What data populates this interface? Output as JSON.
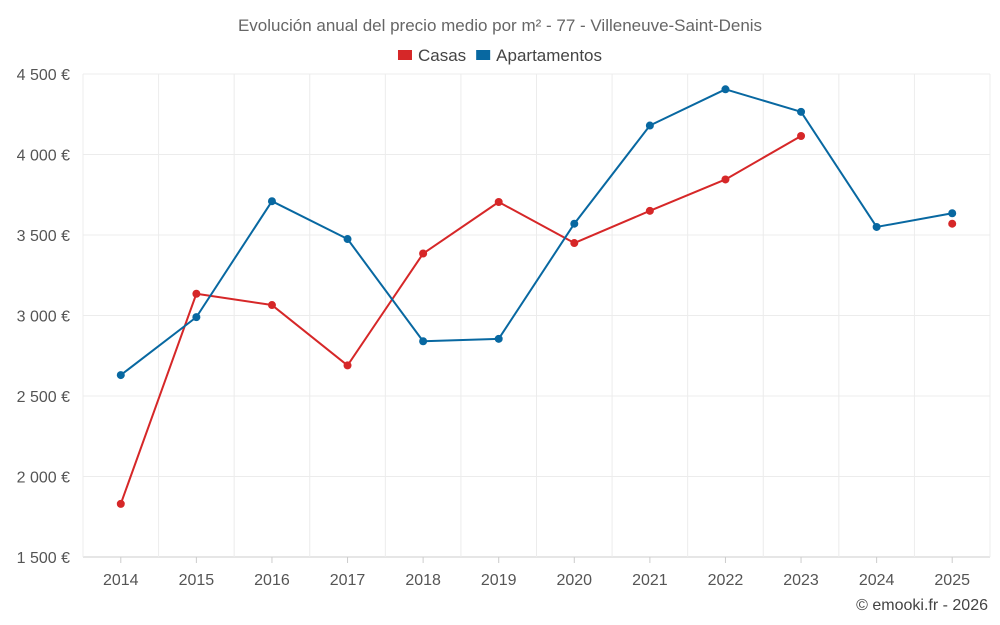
{
  "chart_data": {
    "type": "line",
    "title": "Evolución anual del precio medio por m² - 77 - Villeneuve-Saint-Denis",
    "categories": [
      "2014",
      "2015",
      "2016",
      "2017",
      "2018",
      "2019",
      "2020",
      "2021",
      "2022",
      "2023",
      "2024",
      "2025"
    ],
    "series": [
      {
        "name": "Casas",
        "color": "#d62728",
        "values": [
          1830,
          3135,
          3065,
          2690,
          3385,
          3705,
          3450,
          3650,
          3845,
          4115,
          null,
          3570
        ]
      },
      {
        "name": "Apartamentos",
        "color": "#0868a1",
        "values": [
          2630,
          2990,
          3710,
          3475,
          2840,
          2855,
          3570,
          4180,
          4405,
          4265,
          3550,
          3635
        ]
      }
    ],
    "ylim": [
      1500,
      4500
    ],
    "yticks": [
      1500,
      2000,
      2500,
      3000,
      3500,
      4000,
      4500
    ],
    "ytick_labels": [
      "1 500 €",
      "2 000 €",
      "2 500 €",
      "3 000 €",
      "3 500 €",
      "4 000 €",
      "4 500 €"
    ],
    "xlabel": "",
    "ylabel": "",
    "grid": true,
    "legend_position": "top-center"
  },
  "credit": "© emooki.fr - 2026"
}
